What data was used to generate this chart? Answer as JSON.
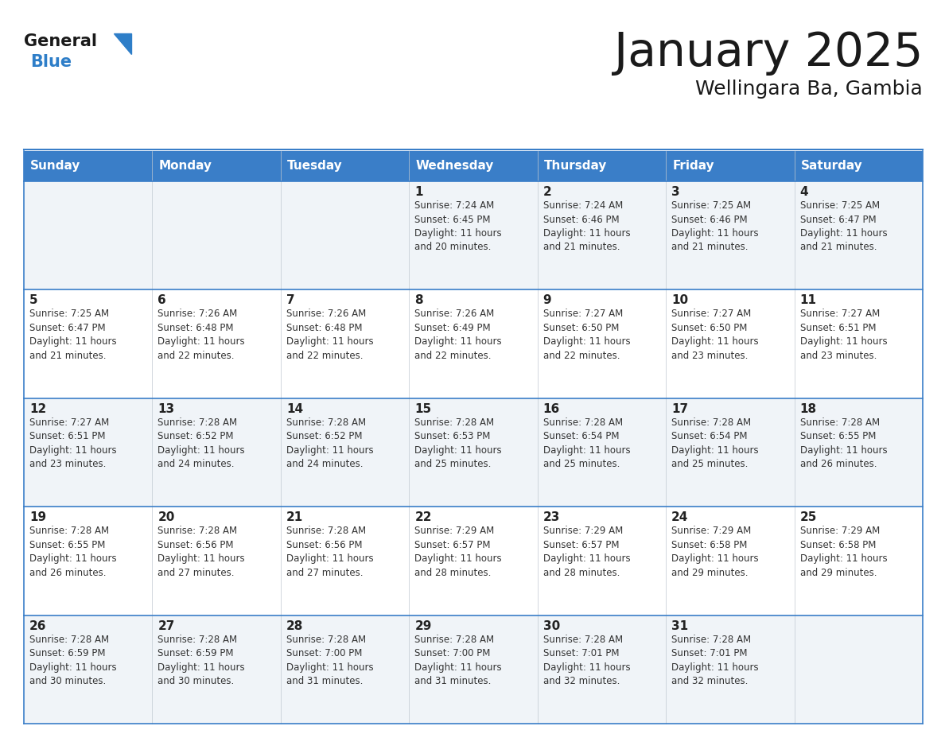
{
  "title": "January 2025",
  "subtitle": "Wellingara Ba, Gambia",
  "days_of_week": [
    "Sunday",
    "Monday",
    "Tuesday",
    "Wednesday",
    "Thursday",
    "Friday",
    "Saturday"
  ],
  "header_bg": "#3a7ec8",
  "header_text": "#ffffff",
  "row_bg_odd": "#f0f4f8",
  "row_bg_even": "#ffffff",
  "cell_text": "#333333",
  "day_num_color": "#222222",
  "border_color": "#3a7ec8",
  "title_color": "#1a1a1a",
  "subtitle_color": "#1a1a1a",
  "logo_general_color": "#1a1a1a",
  "logo_blue_color": "#2e7ec8",
  "calendar": [
    [
      {
        "day": 0,
        "info": ""
      },
      {
        "day": 0,
        "info": ""
      },
      {
        "day": 0,
        "info": ""
      },
      {
        "day": 1,
        "info": "Sunrise: 7:24 AM\nSunset: 6:45 PM\nDaylight: 11 hours\nand 20 minutes."
      },
      {
        "day": 2,
        "info": "Sunrise: 7:24 AM\nSunset: 6:46 PM\nDaylight: 11 hours\nand 21 minutes."
      },
      {
        "day": 3,
        "info": "Sunrise: 7:25 AM\nSunset: 6:46 PM\nDaylight: 11 hours\nand 21 minutes."
      },
      {
        "day": 4,
        "info": "Sunrise: 7:25 AM\nSunset: 6:47 PM\nDaylight: 11 hours\nand 21 minutes."
      }
    ],
    [
      {
        "day": 5,
        "info": "Sunrise: 7:25 AM\nSunset: 6:47 PM\nDaylight: 11 hours\nand 21 minutes."
      },
      {
        "day": 6,
        "info": "Sunrise: 7:26 AM\nSunset: 6:48 PM\nDaylight: 11 hours\nand 22 minutes."
      },
      {
        "day": 7,
        "info": "Sunrise: 7:26 AM\nSunset: 6:48 PM\nDaylight: 11 hours\nand 22 minutes."
      },
      {
        "day": 8,
        "info": "Sunrise: 7:26 AM\nSunset: 6:49 PM\nDaylight: 11 hours\nand 22 minutes."
      },
      {
        "day": 9,
        "info": "Sunrise: 7:27 AM\nSunset: 6:50 PM\nDaylight: 11 hours\nand 22 minutes."
      },
      {
        "day": 10,
        "info": "Sunrise: 7:27 AM\nSunset: 6:50 PM\nDaylight: 11 hours\nand 23 minutes."
      },
      {
        "day": 11,
        "info": "Sunrise: 7:27 AM\nSunset: 6:51 PM\nDaylight: 11 hours\nand 23 minutes."
      }
    ],
    [
      {
        "day": 12,
        "info": "Sunrise: 7:27 AM\nSunset: 6:51 PM\nDaylight: 11 hours\nand 23 minutes."
      },
      {
        "day": 13,
        "info": "Sunrise: 7:28 AM\nSunset: 6:52 PM\nDaylight: 11 hours\nand 24 minutes."
      },
      {
        "day": 14,
        "info": "Sunrise: 7:28 AM\nSunset: 6:52 PM\nDaylight: 11 hours\nand 24 minutes."
      },
      {
        "day": 15,
        "info": "Sunrise: 7:28 AM\nSunset: 6:53 PM\nDaylight: 11 hours\nand 25 minutes."
      },
      {
        "day": 16,
        "info": "Sunrise: 7:28 AM\nSunset: 6:54 PM\nDaylight: 11 hours\nand 25 minutes."
      },
      {
        "day": 17,
        "info": "Sunrise: 7:28 AM\nSunset: 6:54 PM\nDaylight: 11 hours\nand 25 minutes."
      },
      {
        "day": 18,
        "info": "Sunrise: 7:28 AM\nSunset: 6:55 PM\nDaylight: 11 hours\nand 26 minutes."
      }
    ],
    [
      {
        "day": 19,
        "info": "Sunrise: 7:28 AM\nSunset: 6:55 PM\nDaylight: 11 hours\nand 26 minutes."
      },
      {
        "day": 20,
        "info": "Sunrise: 7:28 AM\nSunset: 6:56 PM\nDaylight: 11 hours\nand 27 minutes."
      },
      {
        "day": 21,
        "info": "Sunrise: 7:28 AM\nSunset: 6:56 PM\nDaylight: 11 hours\nand 27 minutes."
      },
      {
        "day": 22,
        "info": "Sunrise: 7:29 AM\nSunset: 6:57 PM\nDaylight: 11 hours\nand 28 minutes."
      },
      {
        "day": 23,
        "info": "Sunrise: 7:29 AM\nSunset: 6:57 PM\nDaylight: 11 hours\nand 28 minutes."
      },
      {
        "day": 24,
        "info": "Sunrise: 7:29 AM\nSunset: 6:58 PM\nDaylight: 11 hours\nand 29 minutes."
      },
      {
        "day": 25,
        "info": "Sunrise: 7:29 AM\nSunset: 6:58 PM\nDaylight: 11 hours\nand 29 minutes."
      }
    ],
    [
      {
        "day": 26,
        "info": "Sunrise: 7:28 AM\nSunset: 6:59 PM\nDaylight: 11 hours\nand 30 minutes."
      },
      {
        "day": 27,
        "info": "Sunrise: 7:28 AM\nSunset: 6:59 PM\nDaylight: 11 hours\nand 30 minutes."
      },
      {
        "day": 28,
        "info": "Sunrise: 7:28 AM\nSunset: 7:00 PM\nDaylight: 11 hours\nand 31 minutes."
      },
      {
        "day": 29,
        "info": "Sunrise: 7:28 AM\nSunset: 7:00 PM\nDaylight: 11 hours\nand 31 minutes."
      },
      {
        "day": 30,
        "info": "Sunrise: 7:28 AM\nSunset: 7:01 PM\nDaylight: 11 hours\nand 32 minutes."
      },
      {
        "day": 31,
        "info": "Sunrise: 7:28 AM\nSunset: 7:01 PM\nDaylight: 11 hours\nand 32 minutes."
      },
      {
        "day": 0,
        "info": ""
      }
    ]
  ]
}
